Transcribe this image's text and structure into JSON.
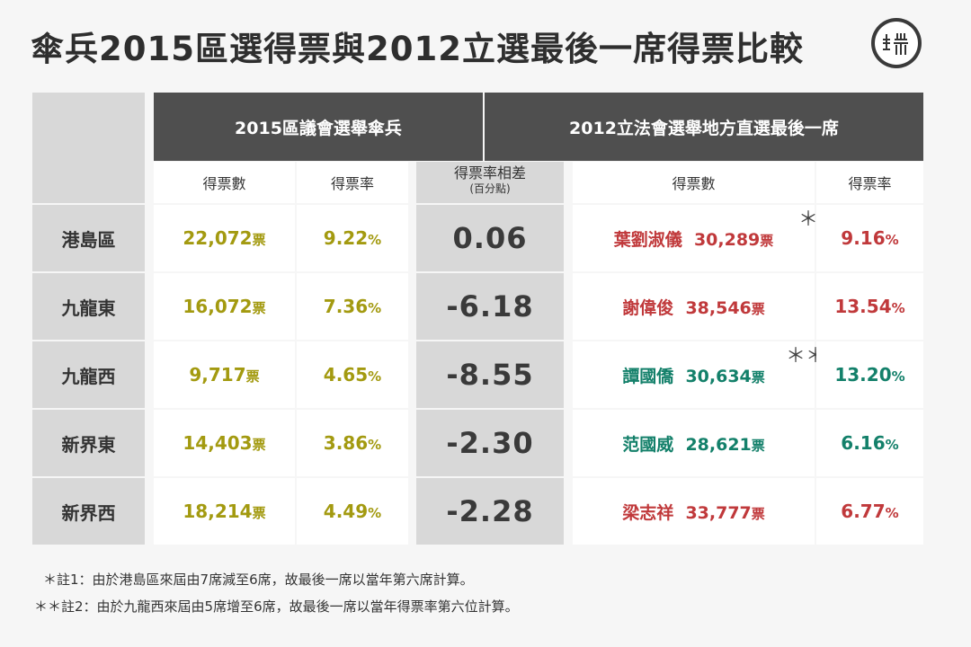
{
  "title": "傘兵2015區選得票與2012立選最後一席得票比較",
  "logo": {
    "label": "端"
  },
  "headers": {
    "group_2015": "2015區議會選舉傘兵",
    "group_2012": "2012立法會選舉地方直選最後一席",
    "votes": "得票數",
    "rate": "得票率",
    "diff_line1": "得票率相差",
    "diff_line2": "(百分點)",
    "votes_2012": "得票數",
    "rate_2012": "得票率"
  },
  "unit_votes": "票",
  "unit_pct": "%",
  "colors": {
    "red": "#c0393b",
    "green": "#13806a",
    "yellow": "#a39a10",
    "dark_header": "#4f4f4f"
  },
  "rows": [
    {
      "district": "港島區",
      "votes_2015": "22,072",
      "rate_2015": "9.22",
      "diff": "0.06",
      "candidate": "葉劉淑儀",
      "votes_2012": "30,289",
      "rate_2012": "9.16",
      "mark": "＊",
      "color": "red"
    },
    {
      "district": "九龍東",
      "votes_2015": "16,072",
      "rate_2015": "7.36",
      "diff": "-6.18",
      "candidate": "謝偉俊",
      "votes_2012": "38,546",
      "rate_2012": "13.54",
      "mark": "",
      "color": "red"
    },
    {
      "district": "九龍西",
      "votes_2015": "9,717",
      "rate_2015": "4.65",
      "diff": "-8.55",
      "candidate": "譚國僑",
      "votes_2012": "30,634",
      "rate_2012": "13.20",
      "mark": "＊＊",
      "color": "green"
    },
    {
      "district": "新界東",
      "votes_2015": "14,403",
      "rate_2015": "3.86",
      "diff": "-2.30",
      "candidate": "范國威",
      "votes_2012": "28,621",
      "rate_2012": "6.16",
      "mark": "",
      "color": "green"
    },
    {
      "district": "新界西",
      "votes_2015": "18,214",
      "rate_2015": "4.49",
      "diff": "-2.28",
      "candidate": "梁志祥",
      "votes_2012": "33,777",
      "rate_2012": "6.77",
      "mark": "",
      "color": "red"
    }
  ],
  "notes": [
    "＊註1：由於港島區來屆由7席減至6席，故最後一席以當年第六席計算。",
    "＊＊註2：由於九龍西來屆由5席增至6席，故最後一席以當年得票率第六位計算。"
  ],
  "chart_data": {
    "type": "table",
    "title": "傘兵2015區選得票與2012立選最後一席得票比較",
    "columns": [
      "",
      "2015 得票數",
      "2015 得票率",
      "得票率相差(百分點)",
      "2012 最後一席",
      "2012 得票數",
      "2012 得票率"
    ],
    "categories": [
      "港島區",
      "九龍東",
      "九龍西",
      "新界東",
      "新界西"
    ],
    "series": [
      {
        "name": "2015 得票數",
        "values": [
          22072,
          16072,
          9717,
          14403,
          18214
        ]
      },
      {
        "name": "2015 得票率",
        "values": [
          9.22,
          7.36,
          4.65,
          3.86,
          4.49
        ]
      },
      {
        "name": "得票率相差",
        "values": [
          0.06,
          -6.18,
          -8.55,
          -2.3,
          -2.28
        ]
      },
      {
        "name": "2012 得票數",
        "values": [
          30289,
          38546,
          30634,
          28621,
          33777
        ]
      },
      {
        "name": "2012 得票率",
        "values": [
          9.16,
          13.54,
          13.2,
          6.16,
          6.77
        ]
      }
    ],
    "candidates": [
      "葉劉淑儀",
      "謝偉俊",
      "譚國僑",
      "范國威",
      "梁志祥"
    ]
  }
}
